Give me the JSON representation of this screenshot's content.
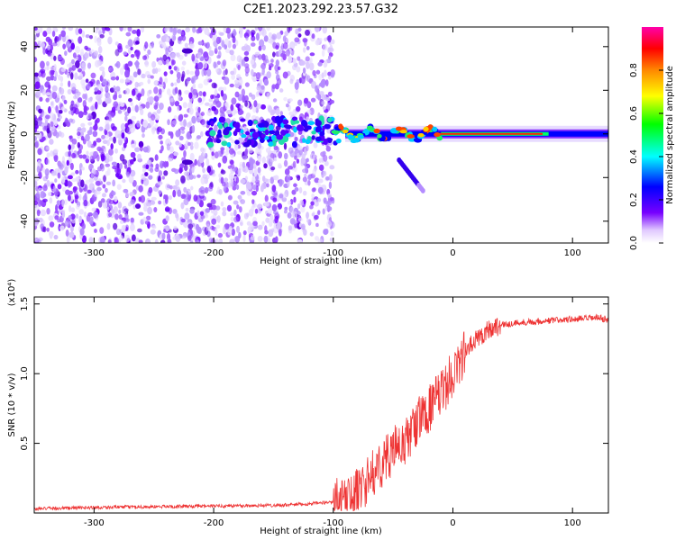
{
  "title": "C2E1.2023.292.23.57.G32",
  "chart_data": [
    {
      "type": "heatmap",
      "xlabel": "Height of straight line (km)",
      "ylabel": "Frequency (Hz)",
      "xlim": [
        -350,
        130
      ],
      "ylim": [
        -50,
        49
      ],
      "x_ticks": [
        -300,
        -200,
        -100,
        0,
        100
      ],
      "x_tick_labels": [
        "-300",
        "-200",
        "-100",
        "0",
        "100"
      ],
      "y_ticks": [
        -40,
        -20,
        0,
        20,
        40
      ],
      "y_tick_labels": [
        "-40",
        "-20",
        "0",
        "20",
        "40"
      ],
      "colorbar": {
        "label": "Normalized spectral amplitude",
        "range": [
          0,
          1
        ],
        "ticks": [
          0.0,
          0.2,
          0.4,
          0.6,
          0.8
        ],
        "tick_labels": [
          "0.0",
          "0.2",
          "0.4",
          "0.6",
          "0.8"
        ],
        "colors": [
          "#ffffff",
          "#7700ff",
          "#0000ff",
          "#00ffff",
          "#00ff00",
          "#ffff00",
          "#ff8800",
          "#ff0000",
          "#ff00aa"
        ]
      },
      "features": {
        "noise_region_x": [
          -350,
          -100
        ],
        "trace_center_hz": 0,
        "trace_strong_x": [
          -90,
          130
        ],
        "secondary_branch": {
          "x": [
            -45,
            -25
          ],
          "y_hz": [
            -12,
            -26
          ]
        },
        "isolated_spots": [
          {
            "x": -222,
            "y_hz": 38
          },
          {
            "x": -222,
            "y_hz": -13
          }
        ]
      }
    },
    {
      "type": "line",
      "xlabel": "Height of straight line (km)",
      "ylabel": "SNR (10 * v/v)",
      "y_multiplier_label": "(x10⁴)",
      "xlim": [
        -350,
        130
      ],
      "ylim": [
        0,
        15500
      ],
      "x_ticks": [
        -300,
        -200,
        -100,
        0,
        100
      ],
      "x_tick_labels": [
        "-300",
        "-200",
        "-100",
        "0",
        "100"
      ],
      "y_ticks": [
        5000,
        10000,
        15000
      ],
      "y_tick_labels": [
        "0.5",
        "1.0",
        "1.5"
      ],
      "color": "#ee3333",
      "series": [
        {
          "x": [
            -350,
            -300,
            -250,
            -200,
            -150,
            -120,
            -100,
            -90,
            -80,
            -70,
            -60,
            -50,
            -40,
            -30,
            -20,
            -10,
            0,
            10,
            20,
            30,
            40,
            60,
            80,
            100,
            120,
            130
          ],
          "values": [
            300,
            400,
            450,
            500,
            550,
            650,
            800,
            1000,
            1500,
            2500,
            3500,
            4500,
            5000,
            6500,
            7500,
            8500,
            10000,
            11500,
            12500,
            13200,
            13500,
            13700,
            13800,
            13900,
            14000,
            13900
          ]
        }
      ]
    }
  ]
}
